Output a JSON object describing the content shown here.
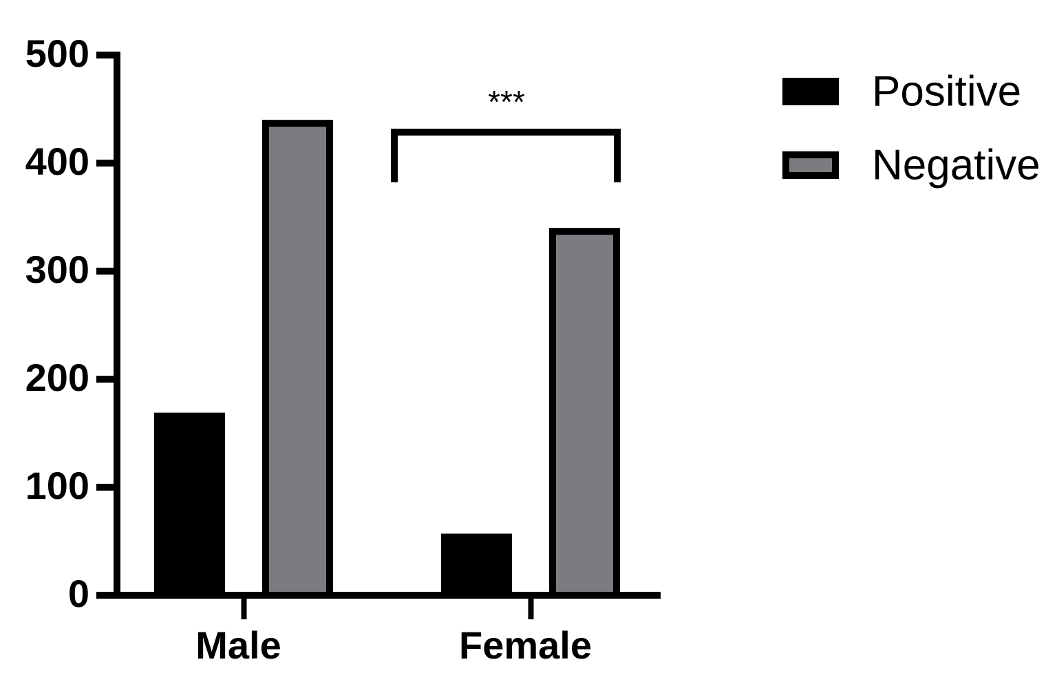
{
  "chart_data": {
    "type": "bar",
    "categories": [
      "Male",
      "Female"
    ],
    "series": [
      {
        "name": "Positive",
        "color": "#000000",
        "values": [
          169,
          57
        ]
      },
      {
        "name": "Negative",
        "color": "#7c7b80",
        "values": [
          440,
          340
        ]
      }
    ],
    "ylim": [
      0,
      500
    ],
    "yticks": [
      0,
      100,
      200,
      300,
      400,
      500
    ],
    "annotation": "***",
    "legend": "top-right"
  }
}
